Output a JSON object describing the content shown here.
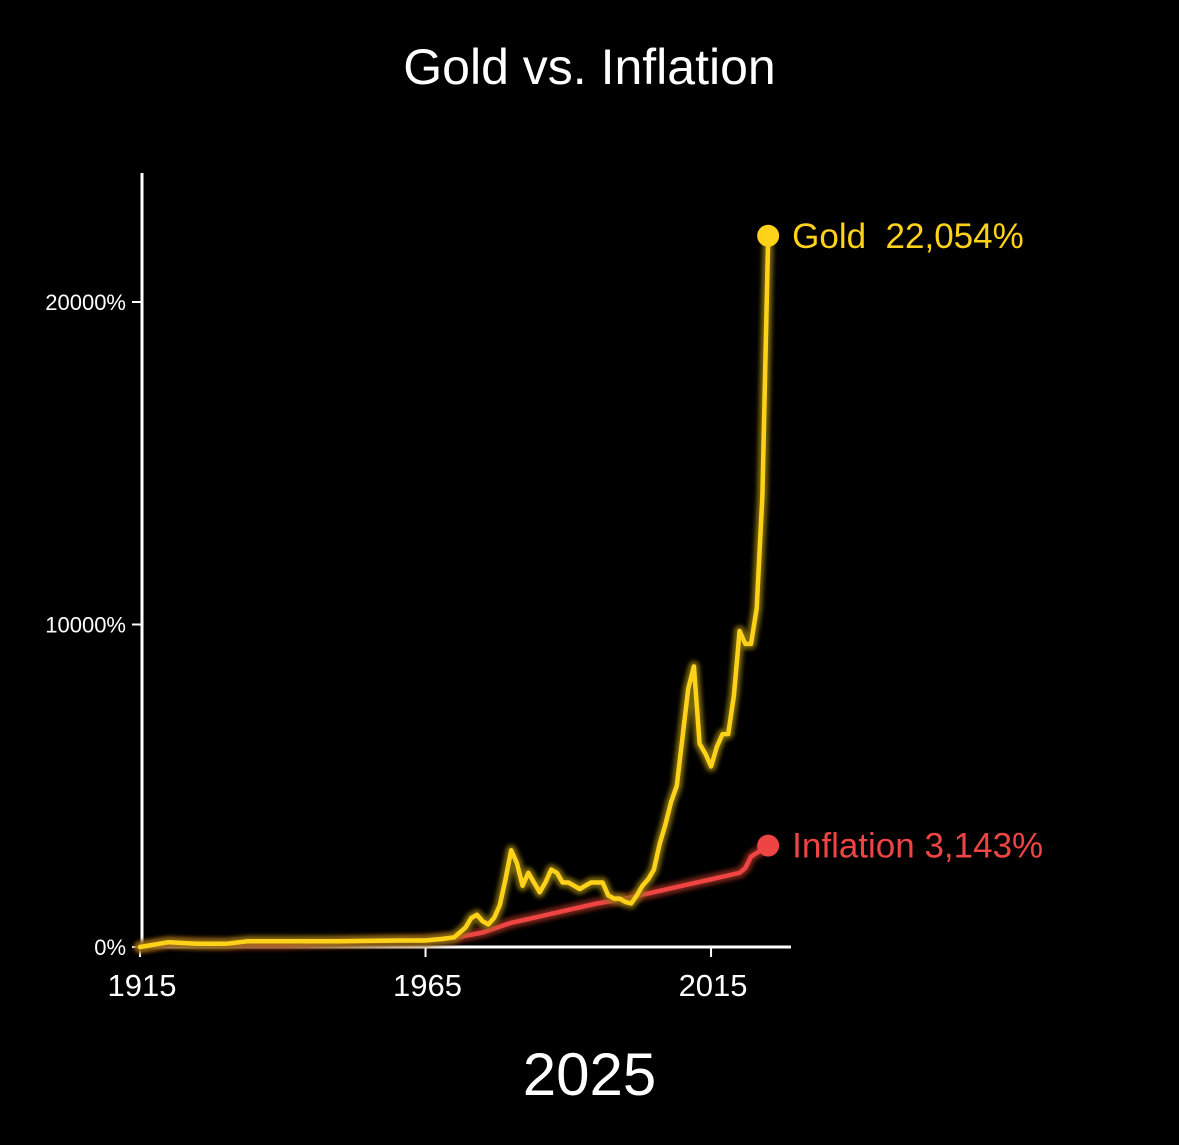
{
  "chart_data": {
    "type": "line",
    "title": "Gold vs. Inflation",
    "current_year": "2025",
    "xlabel": "",
    "ylabel": "",
    "xlim": [
      1915,
      2029
    ],
    "ylim": [
      0,
      24000
    ],
    "x_ticks": [
      1915,
      1965,
      2015
    ],
    "y_ticks": [
      0,
      10000,
      20000
    ],
    "y_tick_labels": [
      "0%",
      "10000%",
      "20000%"
    ],
    "grid": false,
    "legend": "end-of-line labels",
    "colors": {
      "gold": "#FFD21A",
      "inflation": "#EE4444",
      "gold_glow": "#8A7410",
      "inflation_glow": "#8A2A1A"
    },
    "series": [
      {
        "name": "Gold",
        "color": "#FFD21A",
        "end_label": "Gold  22,054%",
        "points": [
          [
            1915,
            0
          ],
          [
            1920,
            150
          ],
          [
            1925,
            100
          ],
          [
            1930,
            100
          ],
          [
            1934,
            180
          ],
          [
            1940,
            180
          ],
          [
            1950,
            180
          ],
          [
            1960,
            200
          ],
          [
            1965,
            200
          ],
          [
            1968,
            250
          ],
          [
            1970,
            300
          ],
          [
            1971,
            450
          ],
          [
            1972,
            600
          ],
          [
            1973,
            900
          ],
          [
            1974,
            1000
          ],
          [
            1975,
            800
          ],
          [
            1976,
            700
          ],
          [
            1977,
            900
          ],
          [
            1978,
            1300
          ],
          [
            1979,
            2100
          ],
          [
            1980,
            3000
          ],
          [
            1981,
            2600
          ],
          [
            1982,
            1900
          ],
          [
            1983,
            2300
          ],
          [
            1984,
            2000
          ],
          [
            1985,
            1700
          ],
          [
            1986,
            2000
          ],
          [
            1987,
            2400
          ],
          [
            1988,
            2300
          ],
          [
            1989,
            2000
          ],
          [
            1990,
            2000
          ],
          [
            1991,
            1900
          ],
          [
            1992,
            1800
          ],
          [
            1993,
            1900
          ],
          [
            1994,
            2000
          ],
          [
            1995,
            2000
          ],
          [
            1996,
            2000
          ],
          [
            1997,
            1600
          ],
          [
            1998,
            1500
          ],
          [
            1999,
            1500
          ],
          [
            2000,
            1400
          ],
          [
            2001,
            1350
          ],
          [
            2002,
            1600
          ],
          [
            2003,
            1900
          ],
          [
            2004,
            2100
          ],
          [
            2005,
            2400
          ],
          [
            2006,
            3200
          ],
          [
            2007,
            3800
          ],
          [
            2008,
            4500
          ],
          [
            2009,
            5000
          ],
          [
            2010,
            6500
          ],
          [
            2011,
            8000
          ],
          [
            2012,
            8700
          ],
          [
            2013,
            6300
          ],
          [
            2014,
            6000
          ],
          [
            2015,
            5600
          ],
          [
            2016,
            6200
          ],
          [
            2017,
            6600
          ],
          [
            2018,
            6600
          ],
          [
            2019,
            7800
          ],
          [
            2020,
            9800
          ],
          [
            2021,
            9400
          ],
          [
            2022,
            9400
          ],
          [
            2023,
            10500
          ],
          [
            2024,
            14000
          ],
          [
            2025,
            22054
          ]
        ]
      },
      {
        "name": "Inflation",
        "color": "#EE4444",
        "end_label": "Inflation 3,143%",
        "points": [
          [
            1915,
            0
          ],
          [
            1920,
            120
          ],
          [
            1930,
            90
          ],
          [
            1940,
            90
          ],
          [
            1950,
            140
          ],
          [
            1960,
            190
          ],
          [
            1965,
            210
          ],
          [
            1970,
            280
          ],
          [
            1975,
            450
          ],
          [
            1980,
            750
          ],
          [
            1985,
            950
          ],
          [
            1990,
            1150
          ],
          [
            1995,
            1350
          ],
          [
            2000,
            1500
          ],
          [
            2005,
            1700
          ],
          [
            2010,
            1900
          ],
          [
            2015,
            2100
          ],
          [
            2020,
            2300
          ],
          [
            2021,
            2450
          ],
          [
            2022,
            2800
          ],
          [
            2025,
            3143
          ]
        ]
      }
    ]
  }
}
